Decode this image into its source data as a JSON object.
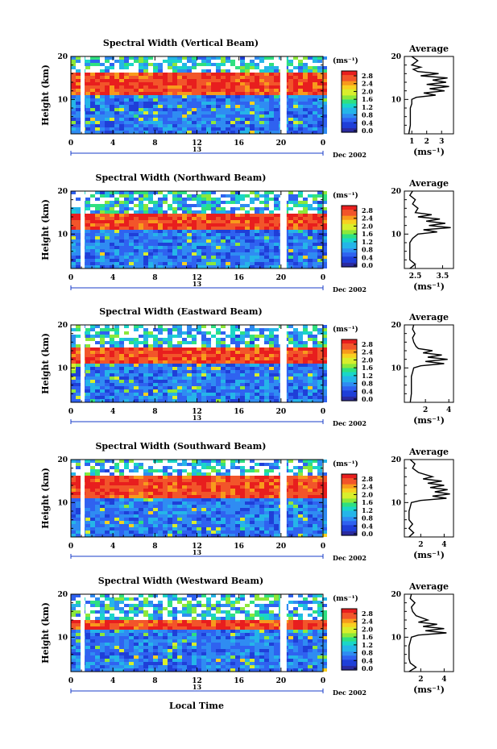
{
  "figure": {
    "xlabel": "Local Time",
    "date_label": "Dec 2002",
    "day_label": "13",
    "colorbar_unit": "(ms⁻¹)",
    "colorbar_ticks": [
      "2.8",
      "2.4",
      "2.0",
      "1.6",
      "1.2",
      "0.8",
      "0.4",
      "0.0"
    ],
    "colors": {
      "background_band": "#2f55e8",
      "strong_band": "#f23a2a",
      "gap": "#ffffff",
      "colorbar": [
        "#2a2aa0",
        "#1f3fd8",
        "#2f62f0",
        "#2f8cf2",
        "#25b5e8",
        "#1ad6c8",
        "#2fe080",
        "#8ce83a",
        "#d8ee2c",
        "#f8d020",
        "#f89a1c",
        "#f2552a",
        "#e81e1e"
      ]
    }
  },
  "chart_data": [
    {
      "type": "heatmap",
      "title": "Spectral Width (Vertical Beam)",
      "ylabel": "Height (km)",
      "x_ticks": [
        "0",
        "4",
        "8",
        "12",
        "16",
        "20",
        "0"
      ],
      "y_ticks": [
        "20",
        "10"
      ],
      "xlim": [
        0,
        24
      ],
      "ylim": [
        2,
        20
      ],
      "colorbar_range": [
        0.0,
        3.0
      ],
      "strong_layer_km": [
        11,
        16
      ],
      "data_gaps_hours": [
        1,
        20
      ],
      "average_profile": {
        "title": "Average",
        "xlabel": "(ms⁻¹)",
        "x_ticks": [
          "1",
          "2",
          "3"
        ],
        "xlim": [
          0.5,
          3.8
        ],
        "height_km": [
          2,
          4,
          6,
          8,
          9,
          10,
          10.5,
          11,
          11.5,
          12,
          12.5,
          13,
          13.5,
          14,
          14.5,
          15,
          15.5,
          16,
          16.5,
          17,
          17.5,
          18,
          19,
          20
        ],
        "values": [
          0.8,
          0.9,
          0.9,
          0.9,
          1.0,
          1.0,
          1.3,
          2.6,
          1.8,
          3.2,
          2.2,
          3.5,
          2.0,
          3.3,
          2.4,
          3.4,
          1.6,
          2.8,
          1.4,
          1.1,
          1.6,
          1.0,
          1.4,
          1.0
        ]
      }
    },
    {
      "type": "heatmap",
      "title": "Spectral Width (Northward Beam)",
      "ylabel": "Height (km)",
      "x_ticks": [
        "0",
        "4",
        "8",
        "12",
        "16",
        "20",
        "0"
      ],
      "y_ticks": [
        "20",
        "10"
      ],
      "xlim": [
        0,
        24
      ],
      "ylim": [
        2,
        20
      ],
      "colorbar_range": [
        0.0,
        3.0
      ],
      "strong_layer_km": [
        11,
        15
      ],
      "data_gaps_hours": [
        1,
        20
      ],
      "average_profile": {
        "title": "Average",
        "xlabel": "(ms⁻¹)",
        "x_ticks": [
          "2.5",
          "3.5"
        ],
        "xlim": [
          2.1,
          3.9
        ],
        "height_km": [
          2,
          3,
          4,
          6,
          8,
          9,
          10,
          10.5,
          11,
          11.5,
          12,
          12.5,
          13,
          13.5,
          14,
          14.5,
          15,
          16,
          17,
          18,
          19,
          20
        ],
        "values": [
          2.3,
          2.5,
          2.3,
          2.3,
          2.3,
          2.4,
          2.6,
          3.3,
          2.8,
          3.8,
          3.0,
          3.6,
          2.9,
          3.4,
          2.6,
          3.1,
          2.5,
          2.6,
          2.4,
          2.5,
          2.3,
          2.4
        ]
      }
    },
    {
      "type": "heatmap",
      "title": "Spectral Width (Eastward Beam)",
      "ylabel": "Height (km)",
      "x_ticks": [
        "0",
        "4",
        "8",
        "12",
        "16",
        "20",
        "0"
      ],
      "y_ticks": [
        "20",
        "10"
      ],
      "xlim": [
        0,
        24
      ],
      "ylim": [
        2,
        20
      ],
      "colorbar_range": [
        0.0,
        3.0
      ],
      "strong_layer_km": [
        11,
        15
      ],
      "data_gaps_hours": [
        1,
        20
      ],
      "average_profile": {
        "title": "Average",
        "xlabel": "(ms⁻¹)",
        "x_ticks": [
          "2",
          "4"
        ],
        "xlim": [
          0.2,
          4.4
        ],
        "height_km": [
          2,
          4,
          6,
          8,
          9,
          10,
          10.5,
          11,
          11.5,
          12,
          12.5,
          13,
          13.5,
          14,
          14.5,
          15,
          16,
          17,
          18,
          19,
          20
        ],
        "values": [
          0.7,
          0.8,
          0.8,
          0.8,
          0.9,
          1.0,
          1.6,
          3.6,
          2.0,
          3.9,
          2.2,
          3.4,
          1.8,
          2.6,
          1.4,
          1.2,
          1.0,
          0.9,
          1.1,
          0.9,
          1.0
        ]
      }
    },
    {
      "type": "heatmap",
      "title": "Spectral Width (Southward Beam)",
      "ylabel": "Height (km)",
      "x_ticks": [
        "0",
        "4",
        "8",
        "12",
        "16",
        "20",
        "0"
      ],
      "y_ticks": [
        "20",
        "10"
      ],
      "xlim": [
        0,
        24
      ],
      "ylim": [
        2,
        20
      ],
      "colorbar_range": [
        0.0,
        3.0
      ],
      "strong_layer_km": [
        11,
        16
      ],
      "data_gaps_hours": [
        1,
        20
      ],
      "average_profile": {
        "title": "Average",
        "xlabel": "(ms⁻¹)",
        "x_ticks": [
          "2",
          "4"
        ],
        "xlim": [
          0.6,
          4.8
        ],
        "height_km": [
          2,
          3,
          4,
          5,
          6,
          8,
          9,
          10,
          10.5,
          11,
          11.5,
          12,
          12.5,
          13,
          13.5,
          14,
          14.5,
          15,
          15.5,
          16,
          17,
          18,
          19,
          20
        ],
        "values": [
          1.0,
          1.4,
          1.0,
          1.3,
          1.0,
          1.0,
          1.1,
          1.2,
          2.0,
          4.2,
          3.0,
          4.5,
          3.2,
          4.3,
          2.8,
          4.0,
          2.6,
          3.8,
          2.2,
          3.0,
          1.8,
          1.3,
          1.5,
          1.1
        ]
      }
    },
    {
      "type": "heatmap",
      "title": "Spectral Width (Westward Beam)",
      "ylabel": "Height (km)",
      "x_ticks": [
        "0",
        "4",
        "8",
        "12",
        "16",
        "20",
        "0"
      ],
      "y_ticks": [
        "20",
        "10"
      ],
      "xlim": [
        0,
        24
      ],
      "ylim": [
        2,
        20
      ],
      "colorbar_range": [
        0.0,
        3.0
      ],
      "strong_layer_km": [
        11.5,
        14
      ],
      "data_gaps_hours": [
        1,
        20
      ],
      "average_profile": {
        "title": "Average",
        "xlabel": "(ms⁻¹)",
        "x_ticks": [
          "2",
          "4"
        ],
        "xlim": [
          0.6,
          4.8
        ],
        "height_km": [
          2,
          3,
          4,
          5,
          6,
          8,
          9,
          10,
          10.5,
          11,
          11.5,
          12,
          12.5,
          13,
          13.5,
          14,
          15,
          16,
          17,
          18,
          19,
          20
        ],
        "values": [
          1.0,
          1.6,
          1.1,
          1.0,
          1.0,
          1.0,
          1.1,
          1.2,
          1.8,
          4.2,
          2.4,
          4.0,
          2.2,
          3.4,
          1.8,
          2.6,
          1.6,
          1.3,
          1.2,
          1.5,
          1.1,
          1.2
        ]
      }
    }
  ]
}
